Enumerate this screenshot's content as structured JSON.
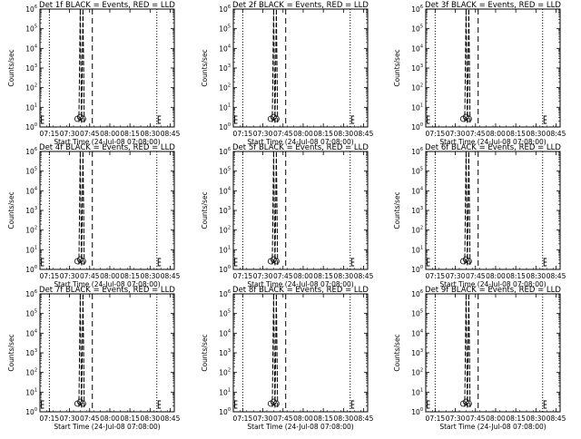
{
  "x_tick_labels": [
    "07:15",
    "07:30",
    "07:45",
    "08:00",
    "08:15",
    "08:30",
    "08:45"
  ],
  "xlabel": "Start Time (24-Jul-08 07:08:00)",
  "ylabel": "Counts/sec",
  "chart_data": [
    {
      "type": "line",
      "title": "Det 1f BLACK = Events, RED = LLD",
      "xlabel": "Start Time (24-Jul-08 07:08:00)",
      "ylabel": "Counts/sec",
      "y_log": true,
      "ylim": [
        1,
        1000000.0
      ],
      "xlim": [
        "07:08",
        "08:48"
      ],
      "y_ticks": [
        {
          "exp": "0"
        },
        {
          "exp": "1"
        },
        {
          "exp": "2"
        },
        {
          "exp": "3"
        },
        {
          "exp": "4"
        },
        {
          "exp": "5"
        },
        {
          "exp": "6"
        }
      ],
      "vlines": [
        {
          "time": "07:15",
          "style": "dotted"
        },
        {
          "time": "07:47",
          "style": "dashed"
        },
        {
          "time": "08:35",
          "style": "dotted"
        }
      ],
      "series": [
        {
          "name": "Events",
          "color": "#000000",
          "points": [
            [
              "07:37",
              1.8
            ],
            [
              "07:38",
              1000000.0
            ],
            [
              "07:39",
              1.5
            ],
            [
              "07:40",
              1000000.0
            ],
            [
              "07:41",
              1.6
            ]
          ]
        }
      ],
      "markers": [
        {
          "time": "07:09",
          "symbol": "E"
        },
        {
          "time": "07:38",
          "symbol": "OOO"
        },
        {
          "time": "08:36",
          "symbol": "E"
        }
      ]
    },
    {
      "type": "line",
      "title": "Det 2f BLACK = Events, RED = LLD",
      "xlabel": "Start Time (24-Jul-08 07:08:00)",
      "ylabel": "Counts/sec",
      "y_log": true,
      "ylim": [
        1,
        1000000.0
      ],
      "xlim": [
        "07:08",
        "08:48"
      ],
      "y_ticks": [
        {
          "exp": "0"
        },
        {
          "exp": "1"
        },
        {
          "exp": "2"
        },
        {
          "exp": "3"
        },
        {
          "exp": "4"
        },
        {
          "exp": "5"
        },
        {
          "exp": "6"
        }
      ],
      "vlines": [
        {
          "time": "07:15",
          "style": "dotted"
        },
        {
          "time": "07:47",
          "style": "dashed"
        },
        {
          "time": "08:35",
          "style": "dotted"
        }
      ],
      "series": [
        {
          "name": "Events",
          "color": "#000000",
          "points": [
            [
              "07:37",
              1.8
            ],
            [
              "07:38",
              1000000.0
            ],
            [
              "07:39",
              1.5
            ],
            [
              "07:40",
              1000000.0
            ],
            [
              "07:41",
              1.6
            ]
          ]
        }
      ],
      "markers": [
        {
          "time": "07:09",
          "symbol": "E"
        },
        {
          "time": "07:38",
          "symbol": "OOO"
        },
        {
          "time": "08:36",
          "symbol": "E"
        }
      ]
    },
    {
      "type": "line",
      "title": "Det 3f BLACK = Events, RED = LLD",
      "xlabel": "Start Time (24-Jul-08 07:08:00)",
      "ylabel": "Counts/sec",
      "y_log": true,
      "ylim": [
        1,
        1000000.0
      ],
      "xlim": [
        "07:08",
        "08:48"
      ],
      "y_ticks": [
        {
          "exp": "0"
        },
        {
          "exp": "1"
        },
        {
          "exp": "2"
        },
        {
          "exp": "3"
        },
        {
          "exp": "4"
        },
        {
          "exp": "5"
        },
        {
          "exp": "6"
        }
      ],
      "vlines": [
        {
          "time": "07:15",
          "style": "dotted"
        },
        {
          "time": "07:47",
          "style": "dashed"
        },
        {
          "time": "08:35",
          "style": "dotted"
        }
      ],
      "series": [
        {
          "name": "Events",
          "color": "#000000",
          "points": [
            [
              "07:37",
              1.8
            ],
            [
              "07:38",
              1000000.0
            ],
            [
              "07:39",
              1.5
            ],
            [
              "07:40",
              1000000.0
            ],
            [
              "07:41",
              1.6
            ]
          ]
        }
      ],
      "markers": [
        {
          "time": "07:09",
          "symbol": "E"
        },
        {
          "time": "07:38",
          "symbol": "OOO"
        },
        {
          "time": "08:36",
          "symbol": "E"
        }
      ]
    },
    {
      "type": "line",
      "title": "Det 4f BLACK = Events, RED = LLD",
      "xlabel": "Start Time (24-Jul-08 07:08:00)",
      "ylabel": "Counts/sec",
      "y_log": true,
      "ylim": [
        1,
        1000000.0
      ],
      "xlim": [
        "07:08",
        "08:48"
      ],
      "y_ticks": [
        {
          "exp": "0"
        },
        {
          "exp": "1"
        },
        {
          "exp": "2"
        },
        {
          "exp": "3"
        },
        {
          "exp": "4"
        },
        {
          "exp": "5"
        },
        {
          "exp": "6"
        }
      ],
      "vlines": [
        {
          "time": "07:15",
          "style": "dotted"
        },
        {
          "time": "07:47",
          "style": "dashed"
        },
        {
          "time": "08:35",
          "style": "dotted"
        }
      ],
      "series": [
        {
          "name": "Events",
          "color": "#000000",
          "points": [
            [
              "07:37",
              1.8
            ],
            [
              "07:38",
              1000000.0
            ],
            [
              "07:39",
              1.5
            ],
            [
              "07:40",
              1000000.0
            ],
            [
              "07:41",
              1.6
            ]
          ]
        }
      ],
      "markers": [
        {
          "time": "07:09",
          "symbol": "E"
        },
        {
          "time": "07:38",
          "symbol": "OOO"
        },
        {
          "time": "08:36",
          "symbol": "E"
        }
      ]
    },
    {
      "type": "line",
      "title": "Det 5f BLACK = Events, RED = LLD",
      "xlabel": "Start Time (24-Jul-08 07:08:00)",
      "ylabel": "Counts/sec",
      "y_log": true,
      "ylim": [
        1,
        1000000.0
      ],
      "xlim": [
        "07:08",
        "08:48"
      ],
      "y_ticks": [
        {
          "exp": "0"
        },
        {
          "exp": "1"
        },
        {
          "exp": "2"
        },
        {
          "exp": "3"
        },
        {
          "exp": "4"
        },
        {
          "exp": "5"
        },
        {
          "exp": "6"
        }
      ],
      "vlines": [
        {
          "time": "07:15",
          "style": "dotted"
        },
        {
          "time": "07:47",
          "style": "dashed"
        },
        {
          "time": "08:35",
          "style": "dotted"
        }
      ],
      "series": [
        {
          "name": "Events",
          "color": "#000000",
          "points": [
            [
              "07:37",
              1.8
            ],
            [
              "07:38",
              1000000.0
            ],
            [
              "07:39",
              1.5
            ],
            [
              "07:40",
              1000000.0
            ],
            [
              "07:41",
              1.6
            ]
          ]
        }
      ],
      "markers": [
        {
          "time": "07:09",
          "symbol": "E"
        },
        {
          "time": "07:38",
          "symbol": "OOO"
        },
        {
          "time": "08:36",
          "symbol": "E"
        }
      ]
    },
    {
      "type": "line",
      "title": "Det 6f BLACK = Events, RED = LLD",
      "xlabel": "Start Time (24-Jul-08 07:08:00)",
      "ylabel": "Counts/sec",
      "y_log": true,
      "ylim": [
        1,
        1000000.0
      ],
      "xlim": [
        "07:08",
        "08:48"
      ],
      "y_ticks": [
        {
          "exp": "0"
        },
        {
          "exp": "1"
        },
        {
          "exp": "2"
        },
        {
          "exp": "3"
        },
        {
          "exp": "4"
        },
        {
          "exp": "5"
        },
        {
          "exp": "6"
        }
      ],
      "vlines": [
        {
          "time": "07:15",
          "style": "dotted"
        },
        {
          "time": "07:47",
          "style": "dashed"
        },
        {
          "time": "08:35",
          "style": "dotted"
        }
      ],
      "series": [
        {
          "name": "Events",
          "color": "#000000",
          "points": [
            [
              "07:37",
              1.8
            ],
            [
              "07:38",
              1000000.0
            ],
            [
              "07:39",
              1.5
            ],
            [
              "07:40",
              1000000.0
            ],
            [
              "07:41",
              1.6
            ]
          ]
        }
      ],
      "markers": [
        {
          "time": "07:09",
          "symbol": "E"
        },
        {
          "time": "07:38",
          "symbol": "OOO"
        },
        {
          "time": "08:36",
          "symbol": "E"
        }
      ]
    },
    {
      "type": "line",
      "title": "Det 7f BLACK = Events, RED = LLD",
      "xlabel": "Start Time (24-Jul-08 07:08:00)",
      "ylabel": "Counts/sec",
      "y_log": true,
      "ylim": [
        1,
        1000000.0
      ],
      "xlim": [
        "07:08",
        "08:48"
      ],
      "y_ticks": [
        {
          "exp": "0"
        },
        {
          "exp": "1"
        },
        {
          "exp": "2"
        },
        {
          "exp": "3"
        },
        {
          "exp": "4"
        },
        {
          "exp": "5"
        },
        {
          "exp": "6"
        }
      ],
      "vlines": [
        {
          "time": "07:15",
          "style": "dotted"
        },
        {
          "time": "07:47",
          "style": "dashed"
        },
        {
          "time": "08:35",
          "style": "dotted"
        }
      ],
      "series": [
        {
          "name": "Events",
          "color": "#000000",
          "points": [
            [
              "07:37",
              1.8
            ],
            [
              "07:38",
              1000000.0
            ],
            [
              "07:39",
              1.5
            ],
            [
              "07:40",
              1000000.0
            ],
            [
              "07:41",
              1.6
            ]
          ]
        }
      ],
      "markers": [
        {
          "time": "07:09",
          "symbol": "E"
        },
        {
          "time": "07:38",
          "symbol": "OOO"
        },
        {
          "time": "08:36",
          "symbol": "E"
        }
      ]
    },
    {
      "type": "line",
      "title": "Det 8f BLACK = Events, RED = LLD",
      "xlabel": "Start Time (24-Jul-08 07:08:00)",
      "ylabel": "Counts/sec",
      "y_log": true,
      "ylim": [
        1,
        1000000.0
      ],
      "xlim": [
        "07:08",
        "08:48"
      ],
      "y_ticks": [
        {
          "exp": "0"
        },
        {
          "exp": "1"
        },
        {
          "exp": "2"
        },
        {
          "exp": "3"
        },
        {
          "exp": "4"
        },
        {
          "exp": "5"
        },
        {
          "exp": "6"
        }
      ],
      "vlines": [
        {
          "time": "07:15",
          "style": "dotted"
        },
        {
          "time": "07:47",
          "style": "dashed"
        },
        {
          "time": "08:35",
          "style": "dotted"
        }
      ],
      "series": [
        {
          "name": "Events",
          "color": "#000000",
          "points": [
            [
              "07:37",
              1.8
            ],
            [
              "07:38",
              1000000.0
            ],
            [
              "07:39",
              1.5
            ],
            [
              "07:40",
              1000000.0
            ],
            [
              "07:41",
              1.6
            ]
          ]
        }
      ],
      "markers": [
        {
          "time": "07:09",
          "symbol": "E"
        },
        {
          "time": "07:38",
          "symbol": "OOO"
        },
        {
          "time": "08:36",
          "symbol": "E"
        }
      ]
    },
    {
      "type": "line",
      "title": "Det 9f BLACK = Events, RED = LLD",
      "xlabel": "Start Time (24-Jul-08 07:08:00)",
      "ylabel": "Counts/sec",
      "y_log": true,
      "ylim": [
        1,
        1000000.0
      ],
      "xlim": [
        "07:08",
        "08:48"
      ],
      "y_ticks": [
        {
          "exp": "0"
        },
        {
          "exp": "1"
        },
        {
          "exp": "2"
        },
        {
          "exp": "3"
        },
        {
          "exp": "4"
        },
        {
          "exp": "5"
        },
        {
          "exp": "6"
        }
      ],
      "vlines": [
        {
          "time": "07:15",
          "style": "dotted"
        },
        {
          "time": "07:47",
          "style": "dashed"
        },
        {
          "time": "08:35",
          "style": "dotted"
        }
      ],
      "series": [
        {
          "name": "Events",
          "color": "#000000",
          "points": [
            [
              "07:37",
              1.8
            ],
            [
              "07:38",
              1000000.0
            ],
            [
              "07:39",
              1.5
            ],
            [
              "07:40",
              1000000.0
            ],
            [
              "07:41",
              1.6
            ]
          ]
        }
      ],
      "markers": [
        {
          "time": "07:09",
          "symbol": "E"
        },
        {
          "time": "07:38",
          "symbol": "OOO"
        },
        {
          "time": "08:36",
          "symbol": "E"
        }
      ]
    }
  ]
}
